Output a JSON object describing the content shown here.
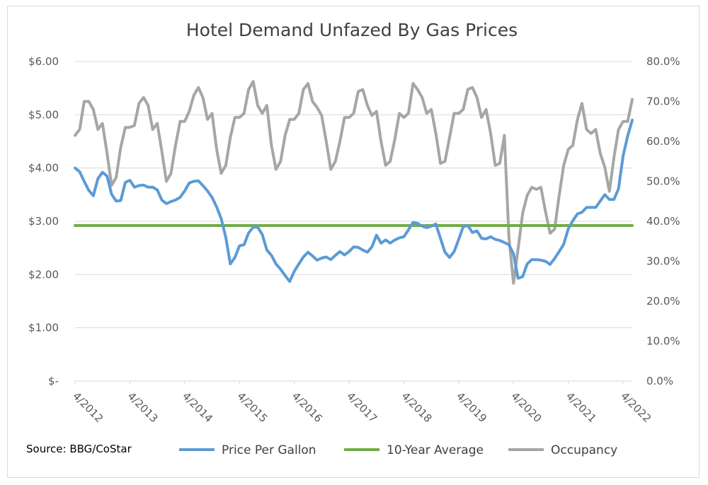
{
  "chart_data": {
    "type": "line",
    "title": "Hotel Demand Unfazed By Gas Prices",
    "source": "Source: BBG/CoStar",
    "x_ticks": [
      "4/2012",
      "4/2013",
      "4/2014",
      "4/2015",
      "4/2016",
      "4/2017",
      "4/2018",
      "4/2019",
      "4/2020",
      "4/2021",
      "4/2022"
    ],
    "y_left": {
      "ticks": [
        "$-",
        "$1.00",
        "$2.00",
        "$3.00",
        "$4.00",
        "$5.00",
        "$6.00"
      ],
      "ylim": [
        0,
        6
      ]
    },
    "y_right": {
      "ticks": [
        "0.0%",
        "10.0%",
        "20.0%",
        "30.0%",
        "40.0%",
        "50.0%",
        "60.0%",
        "70.0%",
        "80.0%"
      ],
      "ylim": [
        0,
        80
      ]
    },
    "grid": "horizontal",
    "legend_position": "bottom",
    "x_start": "4/2012",
    "series": [
      {
        "name": "Price Per Gallon",
        "axis": "left",
        "color": "#5b9bd5",
        "values": [
          4.0,
          3.93,
          3.75,
          3.58,
          3.48,
          3.8,
          3.92,
          3.85,
          3.51,
          3.38,
          3.39,
          3.73,
          3.77,
          3.64,
          3.67,
          3.68,
          3.64,
          3.64,
          3.59,
          3.4,
          3.33,
          3.37,
          3.4,
          3.45,
          3.57,
          3.72,
          3.75,
          3.76,
          3.67,
          3.57,
          3.45,
          3.27,
          3.05,
          2.7,
          2.2,
          2.32,
          2.54,
          2.56,
          2.78,
          2.89,
          2.89,
          2.75,
          2.46,
          2.36,
          2.2,
          2.1,
          1.98,
          1.87,
          2.06,
          2.2,
          2.33,
          2.42,
          2.35,
          2.27,
          2.31,
          2.33,
          2.28,
          2.36,
          2.43,
          2.37,
          2.43,
          2.52,
          2.51,
          2.46,
          2.42,
          2.52,
          2.74,
          2.59,
          2.65,
          2.59,
          2.65,
          2.69,
          2.71,
          2.84,
          2.98,
          2.96,
          2.91,
          2.88,
          2.91,
          2.95,
          2.68,
          2.42,
          2.32,
          2.43,
          2.66,
          2.9,
          2.92,
          2.79,
          2.82,
          2.68,
          2.67,
          2.71,
          2.66,
          2.64,
          2.6,
          2.56,
          2.39,
          1.93,
          1.96,
          2.2,
          2.28,
          2.28,
          2.27,
          2.25,
          2.19,
          2.3,
          2.43,
          2.57,
          2.86,
          3.01,
          3.14,
          3.17,
          3.26,
          3.26,
          3.26,
          3.38,
          3.5,
          3.41,
          3.41,
          3.61,
          4.23,
          4.6,
          4.9
        ]
      },
      {
        "name": "10-Year Average",
        "axis": "left",
        "color": "#70ad47",
        "values": [
          2.92,
          2.92
        ]
      },
      {
        "name": "Occupancy",
        "axis": "right",
        "color": "#a6a6a6",
        "values": [
          61.5,
          63.0,
          70.0,
          70.0,
          68.0,
          63.0,
          64.5,
          57.0,
          49.0,
          51.0,
          58.5,
          63.5,
          63.5,
          64.0,
          69.5,
          71.0,
          69.0,
          63.0,
          64.5,
          57.5,
          50.0,
          52.0,
          59.0,
          65.0,
          65.0,
          67.5,
          71.5,
          73.5,
          71.0,
          65.5,
          67.0,
          58.0,
          52.0,
          54.0,
          61.0,
          66.0,
          66.0,
          67.0,
          73.0,
          75.0,
          69.0,
          67.0,
          69.0,
          59.0,
          53.0,
          55.0,
          61.5,
          65.5,
          65.5,
          67.0,
          73.0,
          74.5,
          70.0,
          68.5,
          66.5,
          60.0,
          53.0,
          55.0,
          60.0,
          66.0,
          66.0,
          67.0,
          72.5,
          73.0,
          69.0,
          66.5,
          67.5,
          60.0,
          54.0,
          55.0,
          60.5,
          67.0,
          66.0,
          67.0,
          74.5,
          73.0,
          71.0,
          67.0,
          68.0,
          62.0,
          54.5,
          55.0,
          61.0,
          67.0,
          67.0,
          68.0,
          73.0,
          73.5,
          71.0,
          66.0,
          68.0,
          62.0,
          54.0,
          54.5,
          61.5,
          36.0,
          24.5,
          33.0,
          42.0,
          46.5,
          48.5,
          48.0,
          48.5,
          42.5,
          37.0,
          38.0,
          46.5,
          54.0,
          58.0,
          59.0,
          65.5,
          69.5,
          63.0,
          62.0,
          63.0,
          57.0,
          53.5,
          47.5,
          56.0,
          63.0,
          65.0,
          65.0,
          70.5
        ]
      }
    ]
  }
}
